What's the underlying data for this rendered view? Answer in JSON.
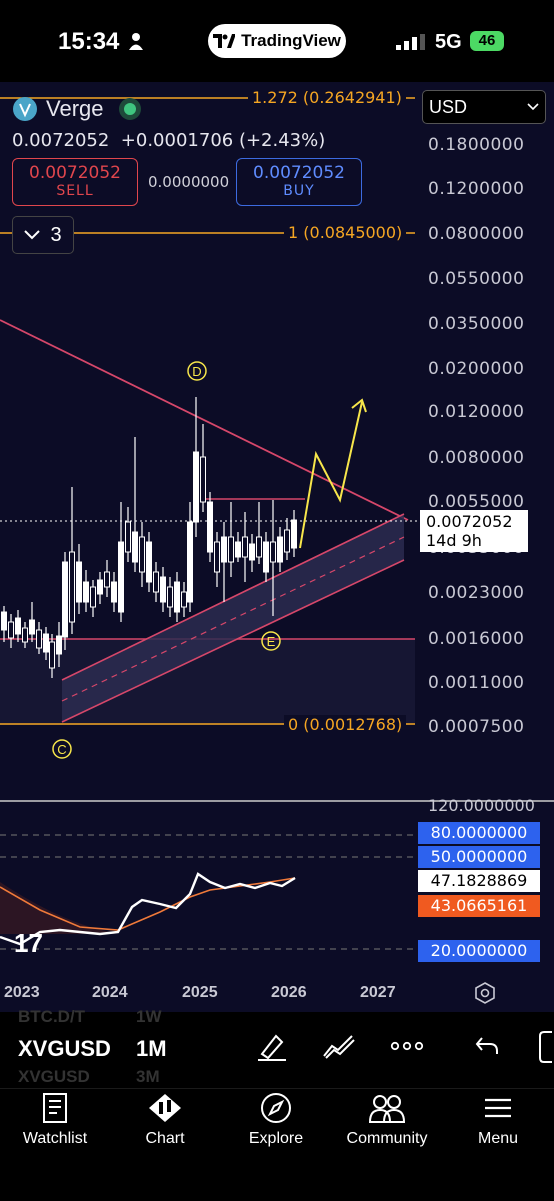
{
  "status_bar": {
    "time": "15:34",
    "app_pill": "TradingView",
    "network": "5G",
    "battery": "46"
  },
  "header": {
    "name": "Verge",
    "price": "0.0072052",
    "change": "+0.0001706 (+2.43%)",
    "sell_price": "0.0072052",
    "sell_label": "SELL",
    "spread": "0.0000000",
    "buy_price": "0.0072052",
    "buy_label": "BUY",
    "indicators_count": "3",
    "currency": "USD"
  },
  "chart_data": {
    "type": "candlestick",
    "y_scale": "log",
    "price_axis": [
      "0.1800000",
      "0.1200000",
      "0.0800000",
      "0.0550000",
      "0.0350000",
      "0.0200000",
      "0.0120000",
      "0.0080000",
      "0.0055000",
      "0.0035000",
      "0.0023000",
      "0.0016000",
      "0.0011000",
      "0.0007500"
    ],
    "fib_levels": [
      {
        "label": "1.272 (0.2642941)"
      },
      {
        "label": "1 (0.0845000)"
      },
      {
        "label": "0 (0.0012768)"
      }
    ],
    "current_price": "0.0072052",
    "countdown": "14d 9h",
    "wave_labels": [
      "C",
      "D",
      "E"
    ],
    "x_axis": [
      "2023",
      "2024",
      "2025",
      "2026",
      "2027"
    ],
    "rsi": {
      "axis_top": "120.0000000",
      "levels": [
        "80.0000000",
        "50.0000000",
        "20.0000000"
      ],
      "value": "47.1828869",
      "ma": "43.0665161"
    }
  },
  "toolbar": {
    "symbol": "XVGUSD",
    "timeframe": "1M",
    "ghost_top": "BTC.D/T",
    "ghost_top_tf": "1W",
    "ghost_bottom": "XVGUSD",
    "ghost_bottom_tf": "3M"
  },
  "nav": [
    {
      "label": "Watchlist"
    },
    {
      "label": "Chart"
    },
    {
      "label": "Explore"
    },
    {
      "label": "Community"
    },
    {
      "label": "Menu"
    }
  ]
}
